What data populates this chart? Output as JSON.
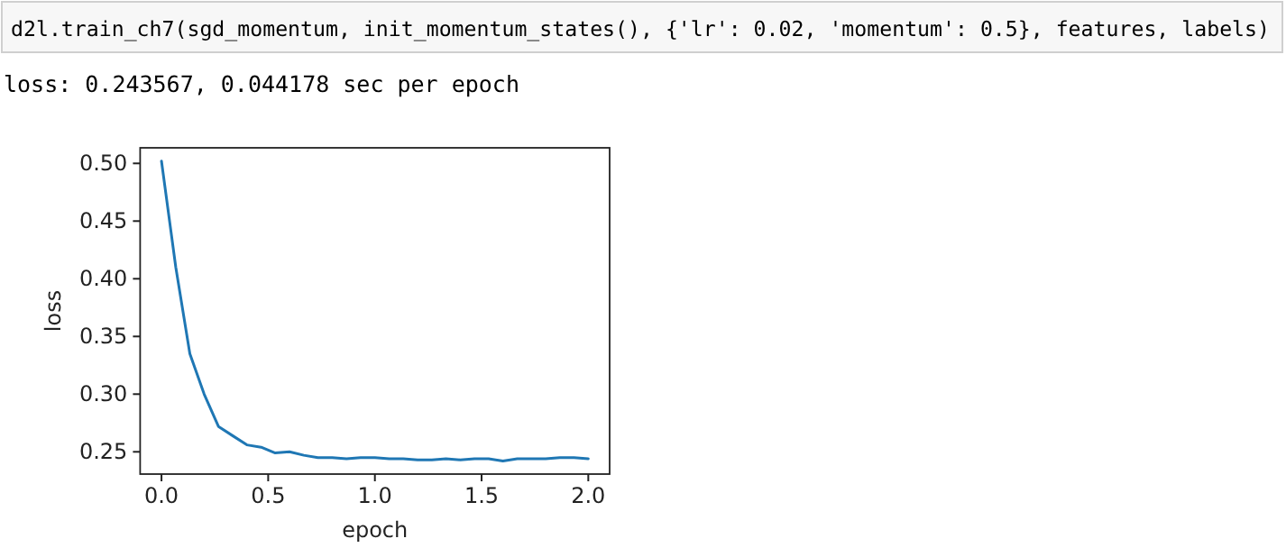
{
  "chart_data": {
    "type": "line",
    "xlabel": "epoch",
    "ylabel": "loss",
    "annotations": [
      "d2l.train_ch7(sgd_momentum, init_momentum_states(), {'lr': 0.02, 'momentum': 0.5}, features, labels)",
      "loss: 0.243567, 0.044178 sec per epoch"
    ],
    "x": [
      0,
      0.067,
      0.133,
      0.2,
      0.267,
      0.333,
      0.4,
      0.467,
      0.533,
      0.6,
      0.667,
      0.733,
      0.8,
      0.867,
      0.933,
      1.0,
      1.067,
      1.133,
      1.2,
      1.267,
      1.333,
      1.4,
      1.467,
      1.533,
      1.6,
      1.667,
      1.733,
      1.8,
      1.867,
      1.933,
      2.0
    ],
    "series": [
      {
        "color": "#1f77b4",
        "values": [
          0.502,
          0.41,
          0.335,
          0.3,
          0.272,
          0.264,
          0.256,
          0.254,
          0.249,
          0.25,
          0.247,
          0.245,
          0.245,
          0.244,
          0.245,
          0.245,
          0.244,
          0.244,
          0.243,
          0.243,
          0.244,
          0.243,
          0.244,
          0.244,
          0.242,
          0.244,
          0.244,
          0.244,
          0.245,
          0.245,
          0.244
        ]
      }
    ],
    "xlim": [
      -0.1,
      2.1
    ],
    "ylim": [
      0.2307,
      0.5135
    ],
    "xticks": [
      {
        "value": 0,
        "label": "0.0"
      },
      {
        "value": 0.5,
        "label": "0.5"
      },
      {
        "value": 1,
        "label": "1.0"
      },
      {
        "value": 1.5,
        "label": "1.5"
      },
      {
        "value": 2,
        "label": "2.0"
      }
    ],
    "yticks": [
      {
        "value": 0.25,
        "label": "0.25"
      },
      {
        "value": 0.3,
        "label": "0.30"
      },
      {
        "value": 0.35,
        "label": "0.35"
      },
      {
        "value": 0.4,
        "label": "0.40"
      },
      {
        "value": 0.45,
        "label": "0.45"
      },
      {
        "value": 0.5,
        "label": "0.50"
      }
    ],
    "grid": false,
    "marker": "none",
    "line_style": "solid"
  }
}
